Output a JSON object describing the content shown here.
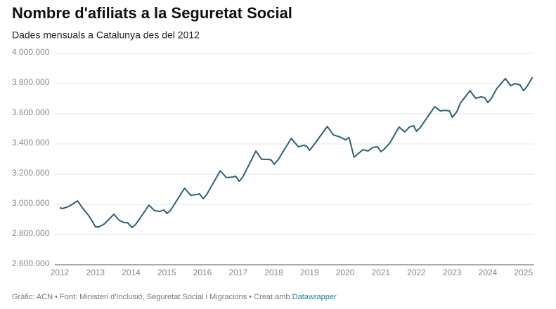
{
  "chart_data": {
    "type": "line",
    "title": "Nombre d'afiliats a la Seguretat Social",
    "subtitle": "Dades mensuals a Catalunya des del 2012",
    "footer": {
      "text": "Gràfic: ACN • Font: Ministeri d'Inclusió, Seguretat Social i Migracions • Creat amb",
      "link": "Datawrapper"
    },
    "x": [
      2012.0,
      2012.08,
      2012.24,
      2012.5,
      2012.65,
      2012.8,
      2012.86,
      2012.92,
      2013.0,
      2013.1,
      2013.25,
      2013.52,
      2013.67,
      2013.81,
      2013.9,
      2014.03,
      2014.12,
      2014.22,
      2014.5,
      2014.66,
      2014.81,
      2014.92,
      2015.0,
      2015.1,
      2015.5,
      2015.67,
      2015.85,
      2015.92,
      2016.02,
      2016.12,
      2016.5,
      2016.67,
      2016.85,
      2016.93,
      2017.03,
      2017.13,
      2017.5,
      2017.66,
      2017.85,
      2017.93,
      2018.01,
      2018.13,
      2018.49,
      2018.69,
      2018.84,
      2018.92,
      2019.0,
      2019.1,
      2019.5,
      2019.67,
      2019.85,
      2019.93,
      2020.01,
      2020.11,
      2020.25,
      2020.5,
      2020.64,
      2020.78,
      2020.91,
      2021.0,
      2021.1,
      2021.25,
      2021.51,
      2021.67,
      2021.8,
      2021.92,
      2022.0,
      2022.1,
      2022.51,
      2022.67,
      2022.8,
      2022.92,
      2023.01,
      2023.13,
      2023.23,
      2023.5,
      2023.66,
      2023.8,
      2023.91,
      2024.0,
      2024.1,
      2024.25,
      2024.49,
      2024.64,
      2024.76,
      2024.9,
      2025.0,
      2025.1,
      2025.25
    ],
    "series": [
      {
        "name": "Afiliats",
        "color": "#2b6079",
        "values": [
          2977000,
          2972000,
          2985000,
          3023000,
          2972000,
          2930000,
          2907000,
          2884000,
          2851000,
          2851000,
          2870000,
          2935000,
          2893000,
          2879000,
          2879000,
          2847000,
          2865000,
          2898000,
          2995000,
          2958000,
          2953000,
          2963000,
          2940000,
          2958000,
          3107000,
          3060000,
          3065000,
          3070000,
          3037000,
          3065000,
          3223000,
          3177000,
          3181000,
          3186000,
          3153000,
          3181000,
          3353000,
          3298000,
          3298000,
          3293000,
          3265000,
          3298000,
          3437000,
          3381000,
          3391000,
          3386000,
          3358000,
          3386000,
          3516000,
          3460000,
          3447000,
          3437000,
          3428000,
          3442000,
          3312000,
          3363000,
          3353000,
          3377000,
          3381000,
          3349000,
          3367000,
          3405000,
          3512000,
          3479000,
          3512000,
          3521000,
          3484000,
          3507000,
          3647000,
          3619000,
          3623000,
          3619000,
          3577000,
          3614000,
          3670000,
          3753000,
          3702000,
          3712000,
          3707000,
          3674000,
          3702000,
          3767000,
          3833000,
          3786000,
          3800000,
          3791000,
          3753000,
          3781000,
          3842000
        ]
      }
    ],
    "xlim": [
      2012,
      2025.3
    ],
    "xticks": [
      2012,
      2013,
      2014,
      2015,
      2016,
      2017,
      2018,
      2019,
      2020,
      2021,
      2022,
      2023,
      2024,
      2025
    ],
    "ylim": [
      2600000,
      4000000
    ],
    "yticks": [
      {
        "value": 2600000,
        "label": "2.600.000"
      },
      {
        "value": 2800000,
        "label": "2.800.000"
      },
      {
        "value": 3000000,
        "label": "3.000.000"
      },
      {
        "value": 3200000,
        "label": "3.200.000"
      },
      {
        "value": 3400000,
        "label": "3.400.000"
      },
      {
        "value": 3600000,
        "label": "3.600.000"
      },
      {
        "value": 3800000,
        "label": "3.800.000"
      },
      {
        "value": 4000000,
        "label": "4.000.000"
      }
    ],
    "grid": true
  }
}
